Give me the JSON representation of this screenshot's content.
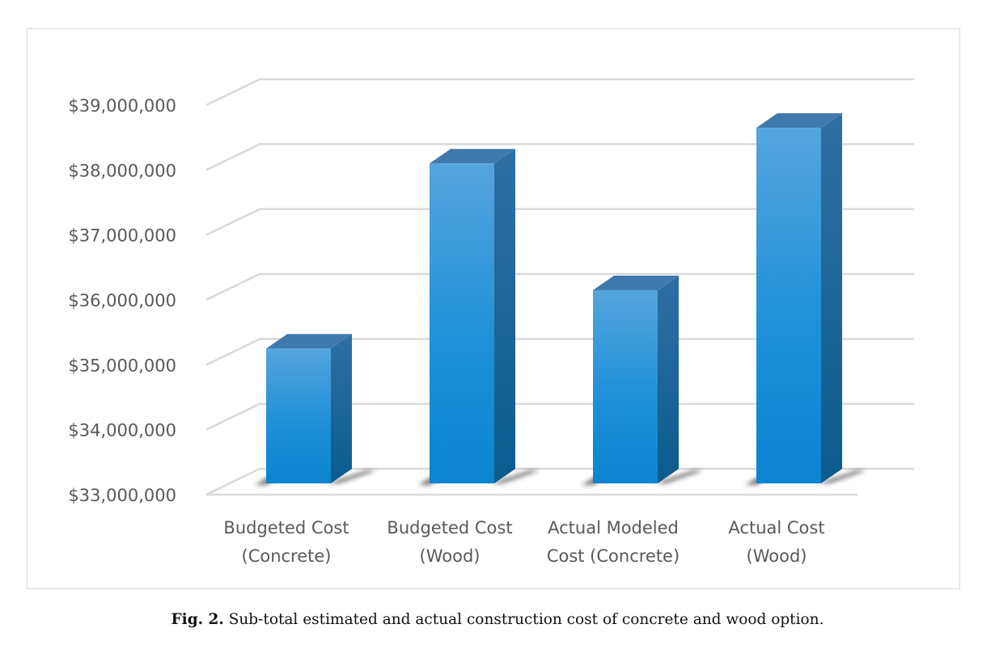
{
  "chart_data": {
    "type": "bar",
    "style": "3d-column",
    "categories": [
      [
        "Budgeted Cost",
        "(Concrete)"
      ],
      [
        "Budgeted Cost",
        "(Wood)"
      ],
      [
        "Actual Modeled",
        "Cost (Concrete)"
      ],
      [
        "Actual Cost",
        "(Wood)"
      ]
    ],
    "values": [
      35250000,
      38100000,
      36150000,
      38650000
    ],
    "ylim": [
      33000000,
      39000000
    ],
    "yticks": [
      33000000,
      34000000,
      35000000,
      36000000,
      37000000,
      38000000,
      39000000
    ],
    "ytick_labels": [
      "$33,000,000",
      "$34,000,000",
      "$35,000,000",
      "$36,000,000",
      "$37,000,000",
      "$38,000,000",
      "$39,000,000"
    ],
    "grid": true,
    "legend": "none",
    "title": "",
    "xlabel": "",
    "ylabel": "",
    "colors": {
      "bar_front_top": "#55a5dd",
      "bar_front_bottom": "#0b84d0",
      "bar_side_top": "#2f6fa3",
      "bar_side_bottom": "#0b5b8e",
      "bar_top": "#3f79ad",
      "gridline": "#d9d9d9",
      "shadow": "#3a3a3a"
    }
  },
  "caption": {
    "label": "Fig. 2.",
    "text": "Sub-total estimated and actual construction cost of concrete and wood option."
  }
}
